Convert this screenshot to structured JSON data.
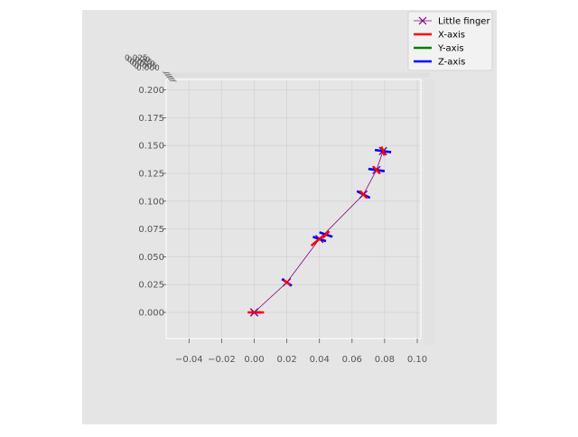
{
  "chart_data": {
    "type": "line",
    "projection": "3d-top-view",
    "title": "",
    "xlabel": "",
    "ylabel": "",
    "zlabel": "",
    "xlim": [
      -0.055,
      0.11
    ],
    "ylim": [
      -0.02,
      0.21
    ],
    "x_ticks": [
      -0.04,
      -0.02,
      0.0,
      0.02,
      0.04,
      0.06,
      0.08,
      0.1
    ],
    "x_tick_labels": [
      "−0.04",
      "−0.02",
      "0.00",
      "0.02",
      "0.04",
      "0.06",
      "0.08",
      "0.10"
    ],
    "y_ticks": [
      0.0,
      0.025,
      0.05,
      0.075,
      0.1,
      0.125,
      0.15,
      0.175,
      0.2
    ],
    "y_tick_labels": [
      "0.000",
      "0.025",
      "0.050",
      "0.075",
      "0.100",
      "0.125",
      "0.150",
      "0.175",
      "0.200"
    ],
    "z_tick_labels": [
      "0.025",
      "0.020",
      "0.015",
      "0.010",
      "0.005",
      "0.000"
    ],
    "grid": true,
    "legend_position": "top-right",
    "legend": [
      {
        "label": "Little finger",
        "color": "#800080",
        "marker": "x"
      },
      {
        "label": "X-axis",
        "color": "#ff0000"
      },
      {
        "label": "Y-axis",
        "color": "#008000"
      },
      {
        "label": "Z-axis",
        "color": "#0000ff"
      }
    ],
    "series": [
      {
        "name": "Little finger",
        "color": "#800080",
        "x": [
          0.0,
          0.02,
          0.04,
          0.067,
          0.075,
          0.079
        ],
        "y": [
          0.0,
          0.027,
          0.066,
          0.106,
          0.128,
          0.145
        ]
      }
    ],
    "frame_axes": [
      {
        "at": [
          0.001,
          0.0
        ],
        "x_axis": {
          "dx": 0.005,
          "dy": 0.0,
          "color": "#ff0000"
        },
        "z_axis": {
          "dx": 0.003,
          "dy": 0.0,
          "color": "#0000ff"
        }
      },
      {
        "at": [
          0.02,
          0.027
        ],
        "x_axis": {
          "dx": -0.002,
          "dy": 0.002,
          "color": "#ff0000"
        },
        "z_axis": {
          "dx": 0.003,
          "dy": -0.003,
          "color": "#0000ff"
        }
      },
      {
        "at": [
          0.04,
          0.066
        ],
        "x_axis": {
          "dx": 0.005,
          "dy": 0.006,
          "color": "#ff0000"
        },
        "z_axis": {
          "dx": -0.004,
          "dy": 0.002,
          "color": "#0000ff"
        }
      },
      {
        "at": [
          0.044,
          0.07
        ],
        "x_axis": {
          "dx": 0.002,
          "dy": 0.003,
          "color": "#ff0000"
        },
        "z_axis": {
          "dx": 0.004,
          "dy": -0.002,
          "color": "#0000ff"
        }
      },
      {
        "at": [
          0.067,
          0.106
        ],
        "x_axis": {
          "dx": -0.002,
          "dy": 0.003,
          "color": "#ff0000"
        },
        "z_axis": {
          "dx": 0.004,
          "dy": -0.003,
          "color": "#0000ff"
        }
      },
      {
        "at": [
          0.075,
          0.128
        ],
        "x_axis": {
          "dx": -0.002,
          "dy": 0.003,
          "color": "#ff0000"
        },
        "z_axis": {
          "dx": 0.005,
          "dy": -0.001,
          "color": "#0000ff"
        }
      },
      {
        "at": [
          0.079,
          0.145
        ],
        "x_axis": {
          "dx": -0.001,
          "dy": 0.004,
          "color": "#ff0000"
        },
        "z_axis": {
          "dx": 0.005,
          "dy": -0.001,
          "color": "#0000ff"
        }
      }
    ]
  }
}
